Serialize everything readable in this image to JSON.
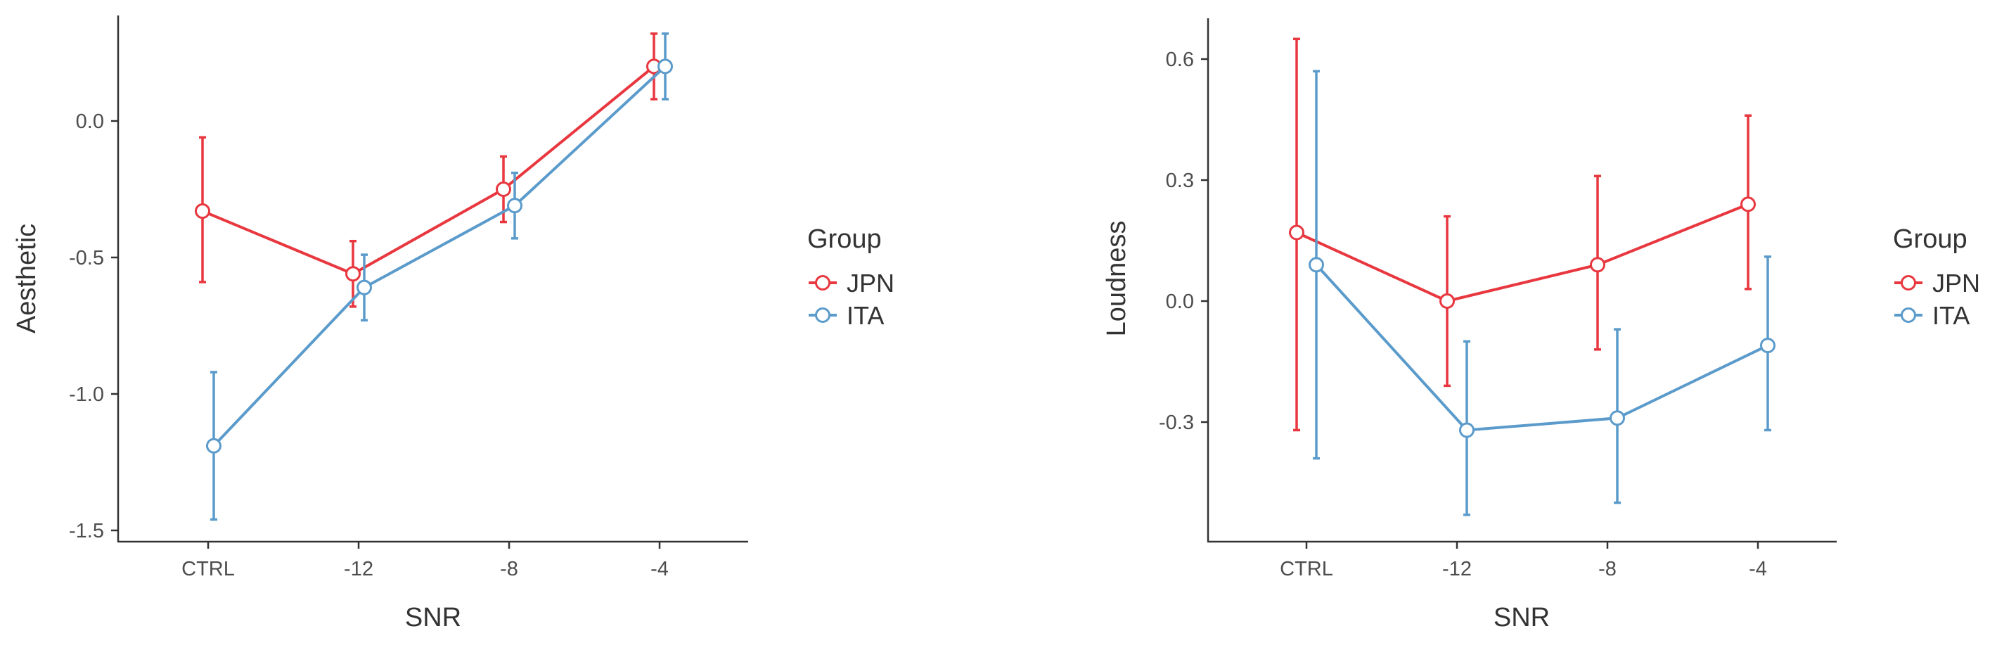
{
  "colors": {
    "JPN": "#e8373f",
    "ITA": "#5b9bcb",
    "axis": "#333333",
    "tick_text": "#4d4d4d",
    "label_text": "#333333"
  },
  "chart_data": [
    {
      "type": "line",
      "title": "",
      "xlabel": "SNR",
      "ylabel": "Aesthetic",
      "categories": [
        "CTRL",
        "-12",
        "-8",
        "-4"
      ],
      "yticks": [
        0.0,
        -0.5,
        -1.0,
        -1.5
      ],
      "ytick_labels": [
        "0.0",
        "-0.5",
        "-1.0",
        "-1.5"
      ],
      "ylim": [
        -1.55,
        0.4
      ],
      "legend": {
        "title": "Group",
        "position": "right",
        "entries": [
          "JPN",
          "ITA"
        ]
      },
      "series": [
        {
          "name": "JPN",
          "values": [
            -0.33,
            -0.56,
            -0.25,
            0.2
          ],
          "lower": [
            -0.59,
            -0.68,
            -0.37,
            0.08
          ],
          "upper": [
            -0.06,
            -0.44,
            -0.13,
            0.32
          ]
        },
        {
          "name": "ITA",
          "values": [
            -1.19,
            -0.61,
            -0.31,
            0.2
          ],
          "lower": [
            -1.46,
            -0.73,
            -0.43,
            0.08
          ],
          "upper": [
            -0.92,
            -0.49,
            -0.19,
            0.32
          ]
        }
      ]
    },
    {
      "type": "line",
      "title": "",
      "xlabel": "SNR",
      "ylabel": "Loudness",
      "categories": [
        "CTRL",
        "-12",
        "-8",
        "-4"
      ],
      "yticks": [
        0.6,
        0.3,
        0.0,
        -0.3
      ],
      "ytick_labels": [
        "0.6",
        "0.3",
        "0.0",
        "-0.3"
      ],
      "ylim": [
        -0.6,
        0.72
      ],
      "legend": {
        "title": "Group",
        "position": "right",
        "entries": [
          "JPN",
          "ITA"
        ]
      },
      "series": [
        {
          "name": "JPN",
          "values": [
            0.17,
            0.0,
            0.09,
            0.24
          ],
          "lower": [
            -0.32,
            -0.21,
            -0.12,
            0.03
          ],
          "upper": [
            0.65,
            0.21,
            0.31,
            0.46
          ]
        },
        {
          "name": "ITA",
          "values": [
            0.09,
            -0.32,
            -0.29,
            -0.11
          ],
          "lower": [
            -0.39,
            -0.53,
            -0.5,
            -0.32
          ],
          "upper": [
            0.57,
            -0.1,
            -0.07,
            0.11
          ]
        }
      ]
    }
  ]
}
